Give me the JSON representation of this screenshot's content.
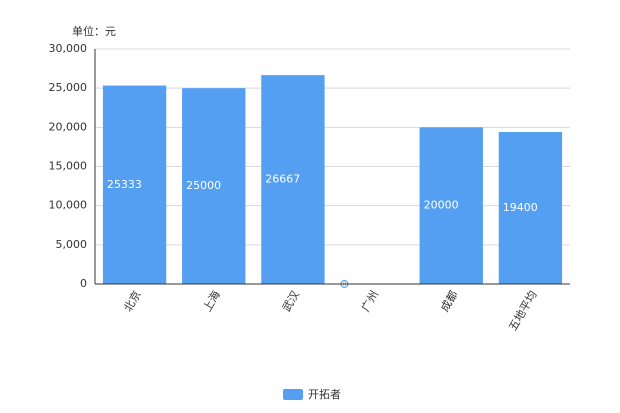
{
  "chart_data": {
    "type": "bar",
    "unit_label": "单位：元",
    "categories": [
      "北京",
      "上海",
      "武汉",
      "广州",
      "成都",
      "五地平均"
    ],
    "series": [
      {
        "name": "开拓者",
        "color": "#549ff2",
        "values": [
          25333,
          25000,
          26667,
          0,
          20000,
          19400
        ]
      }
    ],
    "ylim": [
      0,
      30000
    ],
    "yticks": [
      0,
      {
        "value": 5000,
        "label": "5,000"
      },
      {
        "value": 10000,
        "label": "10,000"
      },
      {
        "value": 15000,
        "label": "15,000"
      },
      {
        "value": 20000,
        "label": "20,000"
      },
      {
        "value": 25000,
        "label": "25,000"
      },
      {
        "value": 30000,
        "label": "30,000"
      }
    ],
    "grid": true,
    "legend": "bottom"
  }
}
